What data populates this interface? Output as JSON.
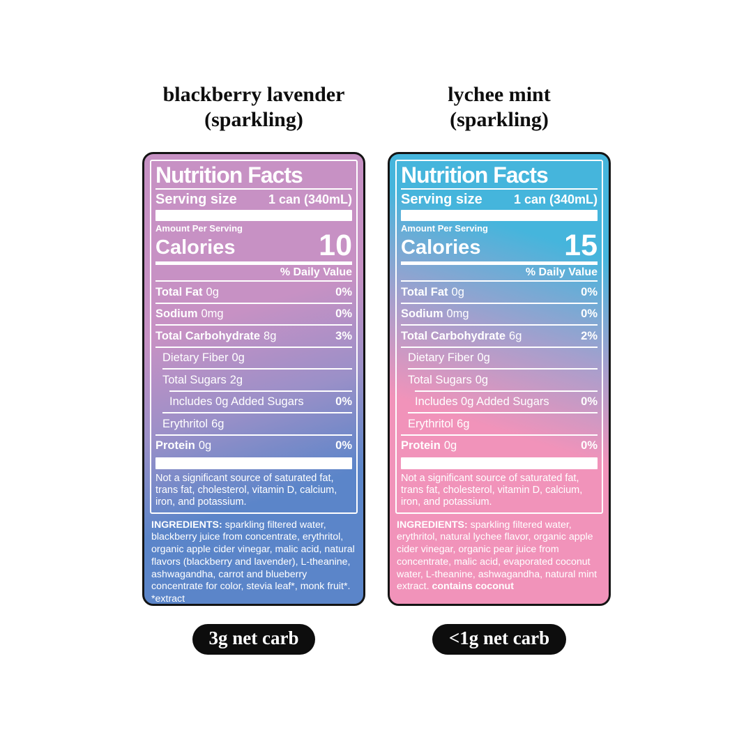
{
  "products": [
    {
      "title_line1": "blackberry lavender",
      "title_line2": "(sparkling)",
      "badge": "3g net carb",
      "colors": {
        "angle": 162,
        "top": "#c791c4",
        "top_stop": 36,
        "mid": "#9b90c8",
        "mid_stop": 55,
        "bottom": "#5b85c9",
        "bottom_stop": 74
      },
      "nutrition": {
        "header": "Nutrition Facts",
        "serving_label": "Serving size",
        "serving_value": "1 can (340mL)",
        "amount_per_serving": "Amount Per Serving",
        "calories_label": "Calories",
        "calories_value": "10",
        "daily_value_header": "% Daily Value",
        "rows": [
          {
            "name": "Total Fat",
            "amount": "0g",
            "dv": "0%"
          },
          {
            "name": "Sodium",
            "amount": "0mg",
            "dv": "0%"
          },
          {
            "name": "Total Carbohydrate",
            "amount": "8g",
            "dv": "3%"
          },
          {
            "name": "Dietary Fiber",
            "amount": "0g",
            "dv": ""
          },
          {
            "name": "Total Sugars",
            "amount": "2g",
            "dv": ""
          },
          {
            "name": "Includes 0g Added Sugars",
            "amount": "",
            "dv": "0%"
          },
          {
            "name": "Erythritol",
            "amount": "6g",
            "dv": ""
          },
          {
            "name": "Protein",
            "amount": "0g",
            "dv": "0%"
          }
        ],
        "footnote": "Not a significant source of saturated fat, trans fat, cholesterol, vitamin D, calcium, iron, and potassium.",
        "ingredients_label": "INGREDIENTS:",
        "ingredients_text": " sparkling filtered water, blackberry juice from concentrate, erythritol, organic apple cider vinegar, malic acid, natural flavors (blackberry and lavender), L-theanine, ashwagandha, carrot and blueberry concentrate for color, stevia leaf*, monk fruit*. *extract ",
        "ingredients_bold_suffix": ""
      }
    },
    {
      "title_line1": "lychee mint",
      "title_line2": "(sparkling)",
      "badge": "<1g net carb",
      "colors": {
        "angle": 198,
        "top": "#45b5dc",
        "top_stop": 20,
        "mid": "#a59fcd",
        "mid_stop": 41,
        "bottom": "#f193ba",
        "bottom_stop": 60
      },
      "nutrition": {
        "header": "Nutrition Facts",
        "serving_label": "Serving size",
        "serving_value": "1 can (340mL)",
        "amount_per_serving": "Amount Per Serving",
        "calories_label": "Calories",
        "calories_value": "15",
        "daily_value_header": "% Daily Value",
        "rows": [
          {
            "name": "Total Fat",
            "amount": "0g",
            "dv": "0%"
          },
          {
            "name": "Sodium",
            "amount": "0mg",
            "dv": "0%"
          },
          {
            "name": "Total Carbohydrate",
            "amount": "6g",
            "dv": "2%"
          },
          {
            "name": "Dietary Fiber",
            "amount": "0g",
            "dv": ""
          },
          {
            "name": "Total Sugars",
            "amount": "0g",
            "dv": ""
          },
          {
            "name": "Includes 0g Added Sugars",
            "amount": "",
            "dv": "0%"
          },
          {
            "name": "Erythritol",
            "amount": "6g",
            "dv": ""
          },
          {
            "name": "Protein",
            "amount": "0g",
            "dv": "0%"
          }
        ],
        "footnote": "Not a significant source of saturated fat, trans fat, cholesterol, vitamin D, calcium, iron, and potassium.",
        "ingredients_label": "INGREDIENTS:",
        "ingredients_text": " sparkling filtered water, erythritol, natural lychee flavor, organic apple cider vinegar, organic pear juice from concentrate, malic acid, evaporated coconut water, L-theanine, ashwagandha, natural mint extract. ",
        "ingredients_bold_suffix": "contains coconut"
      }
    }
  ]
}
